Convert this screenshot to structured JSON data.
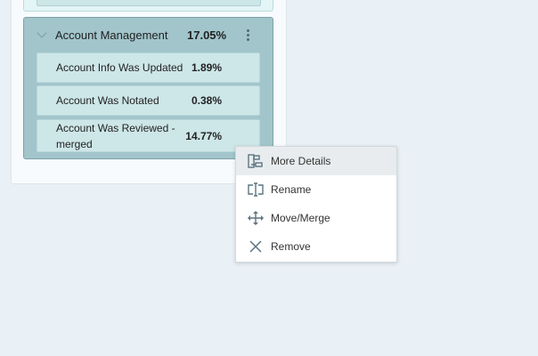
{
  "group": {
    "title": "Account Management",
    "percent": "17.05%",
    "items": [
      {
        "label": "Account Info Was Updated",
        "percent": "1.89%"
      },
      {
        "label": "Account Was Notated",
        "percent": "0.38%"
      },
      {
        "label": "Account Was Reviewed - merged",
        "percent": "14.77%"
      }
    ]
  },
  "menu": {
    "items": [
      {
        "label": "More Details",
        "icon": "hierarchy-icon",
        "highlighted": true
      },
      {
        "label": "Rename",
        "icon": "rename-icon"
      },
      {
        "label": "Move/Merge",
        "icon": "move-icon"
      },
      {
        "label": "Remove",
        "icon": "close-icon"
      }
    ]
  },
  "colors": {
    "background": "#e9f0f6",
    "group": "#a1c5cb",
    "item": "#cde6e8",
    "icon": "#5c7480"
  }
}
